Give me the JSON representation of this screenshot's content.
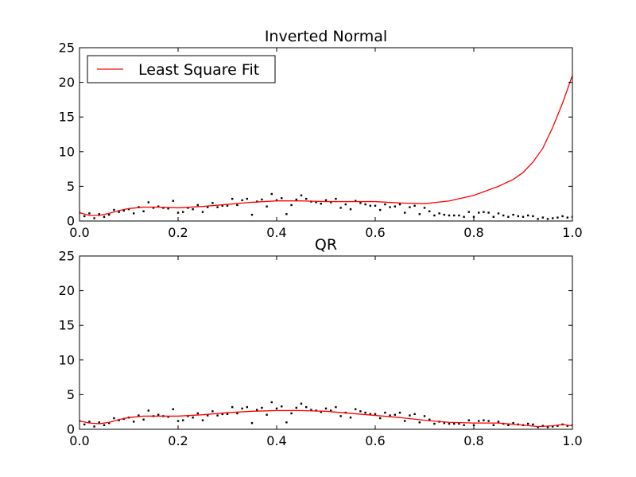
{
  "chart_data": [
    {
      "type": "line",
      "title": "Inverted Normal",
      "xlabel": "",
      "ylabel": "",
      "xlim": [
        0.0,
        1.0
      ],
      "ylim": [
        0,
        25
      ],
      "xticks": [
        "0.0",
        "0.2",
        "0.4",
        "0.6",
        "0.8",
        "1.0"
      ],
      "yticks": [
        "0",
        "5",
        "10",
        "15",
        "20",
        "25"
      ],
      "grid": false,
      "legend": {
        "placement": "top-left",
        "entries": [
          "Least Square Fit"
        ]
      },
      "series": [
        {
          "name": "Least Square Fit",
          "color": "#ff0000",
          "x": [
            0.0,
            0.02,
            0.04,
            0.06,
            0.08,
            0.1,
            0.13,
            0.16,
            0.2,
            0.25,
            0.3,
            0.35,
            0.4,
            0.45,
            0.5,
            0.55,
            0.6,
            0.65,
            0.7,
            0.75,
            0.8,
            0.85,
            0.88,
            0.9,
            0.92,
            0.94,
            0.96,
            0.98,
            1.0
          ],
          "y": [
            1.2,
            0.8,
            0.8,
            1.1,
            1.5,
            1.8,
            2.0,
            2.0,
            1.9,
            2.1,
            2.4,
            2.7,
            2.9,
            2.9,
            2.8,
            2.8,
            2.8,
            2.6,
            2.5,
            2.9,
            3.7,
            5.0,
            6.0,
            7.0,
            8.5,
            10.5,
            13.5,
            17.0,
            21.0
          ]
        }
      ]
    },
    {
      "type": "line",
      "title": "QR",
      "xlabel": "",
      "ylabel": "",
      "xlim": [
        0.0,
        1.0
      ],
      "ylim": [
        0,
        25
      ],
      "xticks": [
        "0.0",
        "0.2",
        "0.4",
        "0.6",
        "0.8",
        "1.0"
      ],
      "yticks": [
        "0",
        "5",
        "10",
        "15",
        "20",
        "25"
      ],
      "grid": false,
      "series": [
        {
          "color": "#ff0000",
          "x": [
            0.0,
            0.02,
            0.04,
            0.06,
            0.08,
            0.1,
            0.13,
            0.16,
            0.2,
            0.25,
            0.3,
            0.35,
            0.4,
            0.45,
            0.5,
            0.55,
            0.6,
            0.65,
            0.7,
            0.75,
            0.8,
            0.85,
            0.9,
            0.93,
            0.96,
            0.98,
            1.0
          ],
          "y": [
            1.2,
            0.9,
            0.8,
            1.0,
            1.4,
            1.7,
            1.9,
            1.9,
            1.9,
            2.1,
            2.4,
            2.6,
            2.7,
            2.7,
            2.6,
            2.3,
            2.0,
            1.7,
            1.3,
            1.0,
            0.9,
            0.9,
            0.6,
            0.4,
            0.5,
            0.7,
            0.5
          ]
        }
      ]
    }
  ],
  "scatter_points": {
    "color": "#000000",
    "x": [
      0.0,
      0.01,
      0.02,
      0.03,
      0.04,
      0.05,
      0.06,
      0.07,
      0.08,
      0.09,
      0.1,
      0.11,
      0.12,
      0.13,
      0.14,
      0.15,
      0.16,
      0.17,
      0.18,
      0.19,
      0.2,
      0.21,
      0.22,
      0.23,
      0.24,
      0.25,
      0.26,
      0.27,
      0.28,
      0.29,
      0.3,
      0.31,
      0.32,
      0.33,
      0.34,
      0.35,
      0.36,
      0.37,
      0.38,
      0.39,
      0.4,
      0.41,
      0.42,
      0.43,
      0.44,
      0.45,
      0.46,
      0.47,
      0.48,
      0.49,
      0.5,
      0.51,
      0.52,
      0.53,
      0.54,
      0.55,
      0.56,
      0.57,
      0.58,
      0.59,
      0.6,
      0.61,
      0.62,
      0.63,
      0.64,
      0.65,
      0.66,
      0.67,
      0.68,
      0.69,
      0.7,
      0.71,
      0.72,
      0.73,
      0.74,
      0.75,
      0.76,
      0.77,
      0.78,
      0.79,
      0.8,
      0.81,
      0.82,
      0.83,
      0.84,
      0.85,
      0.86,
      0.87,
      0.88,
      0.89,
      0.9,
      0.91,
      0.92,
      0.93,
      0.94,
      0.95,
      0.96,
      0.97,
      0.98,
      0.99,
      1.0
    ],
    "y": [
      1.2,
      0.7,
      1.1,
      0.4,
      1.0,
      0.6,
      0.9,
      1.6,
      1.3,
      1.5,
      1.7,
      1.1,
      2.0,
      1.4,
      2.7,
      1.9,
      2.1,
      1.9,
      1.8,
      2.9,
      1.2,
      1.3,
      1.9,
      1.7,
      2.3,
      1.3,
      2.0,
      2.6,
      2.0,
      2.2,
      2.2,
      3.2,
      2.3,
      3.0,
      3.2,
      0.9,
      2.8,
      3.1,
      2.1,
      3.9,
      3.0,
      3.3,
      1.0,
      2.3,
      3.1,
      3.7,
      3.2,
      2.8,
      2.7,
      2.5,
      3.0,
      2.7,
      3.2,
      1.9,
      2.4,
      1.7,
      2.9,
      2.6,
      2.4,
      2.2,
      2.2,
      1.6,
      2.4,
      2.0,
      2.1,
      2.4,
      1.2,
      2.0,
      2.2,
      1.0,
      1.9,
      1.4,
      0.8,
      1.1,
      0.9,
      0.8,
      0.8,
      0.8,
      0.6,
      1.3,
      0.6,
      1.2,
      1.3,
      1.2,
      0.6,
      1.1,
      0.8,
      0.6,
      0.9,
      0.7,
      0.6,
      0.8,
      0.7,
      0.3,
      0.5,
      0.3,
      0.4,
      0.5,
      0.7,
      0.5,
      0.6
    ]
  }
}
